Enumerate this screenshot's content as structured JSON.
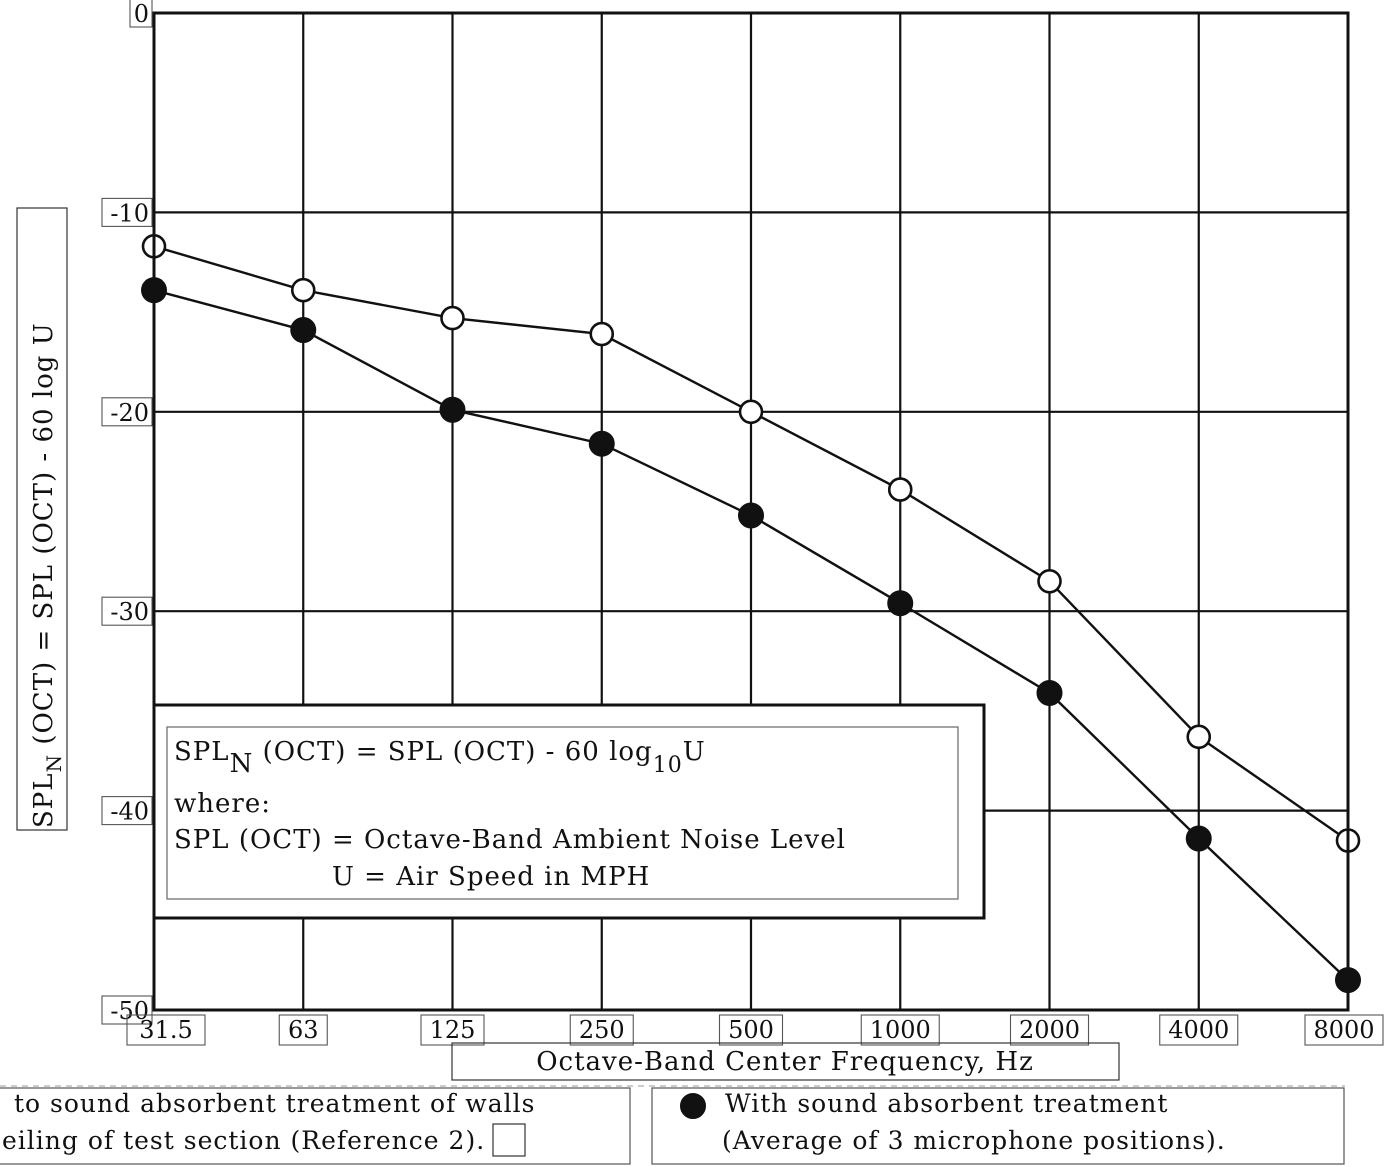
{
  "chart_data": {
    "type": "line",
    "categories": [
      "31.5",
      "63",
      "125",
      "250",
      "500",
      "1000",
      "2000",
      "4000",
      "8000"
    ],
    "xlabel": "Octave-Band Center Frequency, Hz",
    "ylabel": "SPL_N (OCT) = SPL (OCT) - 60 log U",
    "ylabel_parts": {
      "a": "SPL",
      "sub": "N",
      "b": " (OCT) = SPL (OCT) - 60 log U"
    },
    "ylim": [
      -50,
      0
    ],
    "yticks": [
      0,
      -10,
      -20,
      -30,
      -40,
      -50
    ],
    "ytick_labels": [
      "0",
      "-10",
      "-20",
      "-30",
      "-40",
      "-50"
    ],
    "grid": true,
    "series": [
      {
        "marker": "open-circle",
        "values": [
          -11.7,
          -13.9,
          -15.3,
          -16.1,
          -20.0,
          -23.9,
          -28.5,
          -36.3,
          -41.5
        ]
      },
      {
        "marker": "filled-circle",
        "values": [
          -13.9,
          -15.9,
          -19.9,
          -21.6,
          -25.2,
          -29.6,
          -34.1,
          -41.4,
          -48.5
        ]
      }
    ],
    "annotation": {
      "line1": {
        "a": "SPL",
        "sub1": "N",
        "b": " (OCT) = SPL (OCT) - 60 log",
        "sub2": "10",
        "c": "U"
      },
      "line2": "where:",
      "line3": "SPL (OCT) = Octave-Band Ambient Noise Level",
      "line4": "U = Air Speed in MPH"
    },
    "legend": [
      {
        "marker": "open-circle",
        "line1": "to sound absorbent treatment of walls",
        "line2_a": "eiling of test section (Reference ",
        "line2_ref": "2",
        "line2_b": ")."
      },
      {
        "marker": "filled-circle",
        "line1": "With sound absorbent treatment",
        "line2": "(Average of 3 microphone positions)."
      }
    ]
  }
}
